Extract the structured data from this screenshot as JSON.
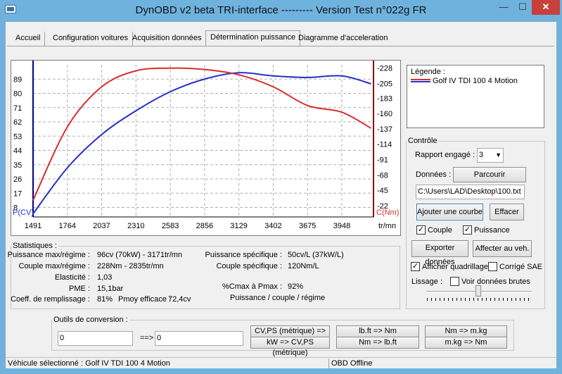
{
  "window": {
    "title": "DynOBD v2 beta TRI-interface --------- Version Test n°022g FR",
    "min": "—",
    "max": "☐",
    "close": "✕"
  },
  "tabs": [
    "Accueil",
    "Configuration voitures",
    "Acquisition données",
    "Détermination puissance",
    "Diagramme d'acceleration"
  ],
  "active_tab": "Détermination puissance",
  "chart_data": {
    "type": "line",
    "x": [
      1491,
      1764,
      2037,
      2310,
      2583,
      2856,
      3129,
      3402,
      3675,
      3948,
      4180
    ],
    "xlabel": "tr/mn",
    "xlim": [
      1491,
      4200
    ],
    "x_ticks": [
      "1491",
      "1764",
      "2037",
      "2310",
      "2583",
      "2856",
      "3129",
      "3402",
      "3675",
      "3948"
    ],
    "y_left_label": "P(CV)",
    "y_left_ticks": [
      "8",
      "17",
      "26",
      "35",
      "44",
      "53",
      "62",
      "71",
      "80",
      "89"
    ],
    "y_left_range": [
      2,
      98
    ],
    "y_right_label": "C(Nm)",
    "y_right_ticks": [
      "-22",
      "-45",
      "-68",
      "-91",
      "-114",
      "-137",
      "-160",
      "-183",
      "-205",
      "-228"
    ],
    "y_right_range": [
      5,
      233
    ],
    "series": [
      {
        "name": "Puissance",
        "axis": "left",
        "color": "#2730c8",
        "values": [
          4,
          33,
          54,
          69,
          81,
          89,
          93,
          91,
          90,
          91,
          86
        ]
      },
      {
        "name": "Couple",
        "axis": "right",
        "color": "#d62e2e",
        "values": [
          30,
          140,
          200,
          224,
          228,
          226,
          218,
          200,
          172,
          162,
          138
        ]
      }
    ],
    "grid": true
  },
  "legend": {
    "title": "Légende :",
    "entry": "Golf IV TDI 100 4 Motion"
  },
  "stats": {
    "title": "Statistiques :",
    "puissance_max_label": "Puissance max/régime :",
    "puissance_max": "96cv (70kW) - 3171tr/mn",
    "couple_max_label": "Couple max/régime :",
    "couple_max": "228Nm - 2835tr/mn",
    "elasticite_label": "Elasticité :",
    "elasticite": "1,03",
    "pme_label": "PME :",
    "pme": "15,1bar",
    "coeff_label": "Coeff. de remplissage :",
    "coeff": "81%",
    "pmoy_label": "Pmoy efficace :",
    "pmoy": "72,4cv",
    "p_spec_label": "Puissance spécifique :",
    "p_spec": "50cv/L (37kW/L)",
    "c_spec_label": "Couple spécifique :",
    "c_spec": "120Nm/L",
    "cmax_label": "%Cmax à Pmax :",
    "cmax": "92%",
    "ppc": "Puissance / couple / régime"
  },
  "controle": {
    "title": "Contrôle",
    "rapport_label": "Rapport engagé :",
    "rapport_value": "3",
    "donnees_label": "Données :",
    "parcourir": "Parcourir",
    "file_path": "C:\\Users\\LAD\\Desktop\\100.txt",
    "ajouter": "Ajouter une courbe",
    "effacer": "Effacer",
    "couple": "Couple",
    "puissance": "Puissance",
    "exporter": "Exporter données",
    "affecter": "Affecter au veh.",
    "quadrillage": "Afficher quadrillage",
    "corrige": "Corrigé SAE",
    "lissage": "Lissage :",
    "voir_brutes": "Voir données brutes",
    "check": "✓"
  },
  "conversion": {
    "title": "Outils de conversion :",
    "input1": "0",
    "arrow": "==>",
    "input2": "0",
    "btn1": "CV,PS (métrique) => kW",
    "btn2": "kW => CV,PS (métrique)",
    "btn3": "lb.ft => Nm",
    "btn4": "Nm => lb.ft",
    "btn5": "Nm => m.kg",
    "btn6": "m.kg => Nm"
  },
  "status": {
    "vehicle": "Véhicule sélectionné : Golf IV TDI 100 4 Motion",
    "obd": "OBD Offline"
  }
}
